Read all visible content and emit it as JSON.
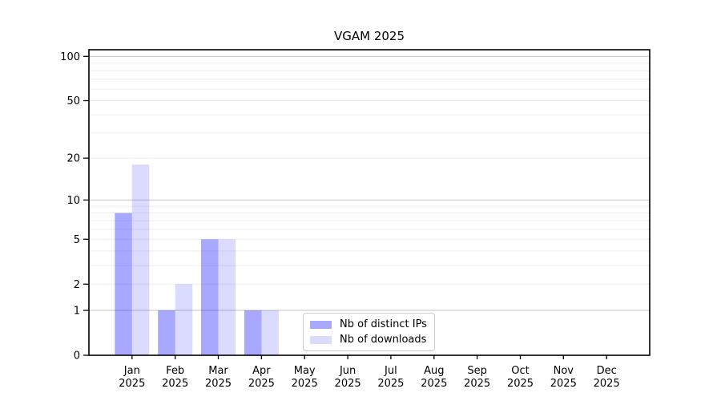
{
  "chart_data": {
    "type": "bar",
    "title": "VGAM 2025",
    "categories": [
      "Jan",
      "Feb",
      "Mar",
      "Apr",
      "May",
      "Jun",
      "Jul",
      "Aug",
      "Sep",
      "Oct",
      "Nov",
      "Dec"
    ],
    "x_tick_year": "2025",
    "series": [
      {
        "name": "Nb of distinct IPs",
        "color": "rgba(0,0,255,0.34)",
        "values": [
          8,
          1,
          5,
          1,
          0,
          0,
          0,
          0,
          0,
          0,
          0,
          0
        ]
      },
      {
        "name": "Nb of downloads",
        "color": "rgba(0,0,255,0.14)",
        "values": [
          18,
          2,
          5,
          1,
          0,
          0,
          0,
          0,
          0,
          0,
          0,
          0
        ]
      }
    ],
    "y_scale": "log1p",
    "ylim": [
      0,
      111
    ],
    "y_ticks": [
      0,
      1,
      2,
      5,
      10,
      20,
      50,
      100
    ],
    "grid": {
      "major_values": [
        1,
        10,
        100
      ],
      "minor_values": [
        2,
        3,
        4,
        5,
        6,
        7,
        8,
        9,
        20,
        30,
        40,
        50,
        60,
        70,
        80,
        90
      ],
      "major_color": "#c3c3c3",
      "minor_color": "#ededed"
    },
    "legend_position": "lower center",
    "axis_color": "#000000",
    "background_color": "#ffffff"
  }
}
